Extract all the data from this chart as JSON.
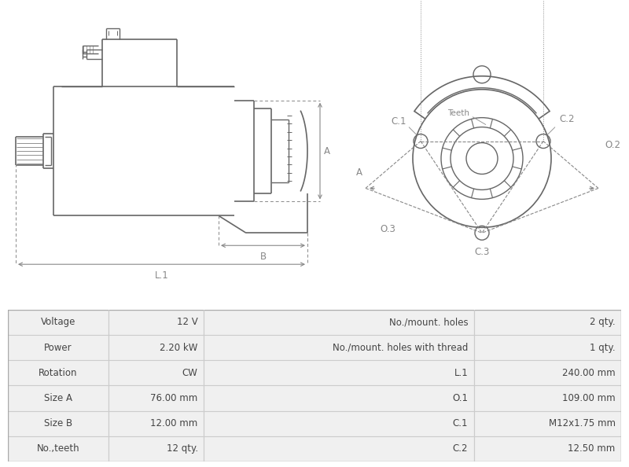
{
  "table_rows": [
    [
      "Voltage",
      "12 V",
      "No./mount. holes",
      "2 qty."
    ],
    [
      "Power",
      "2.20 kW",
      "No./mount. holes with thread",
      "1 qty."
    ],
    [
      "Rotation",
      "CW",
      "L.1",
      "240.00 mm"
    ],
    [
      "Size A",
      "76.00 mm",
      "O.1",
      "109.00 mm"
    ],
    [
      "Size B",
      "12.00 mm",
      "C.1",
      "M12x1.75 mm"
    ],
    [
      "No.,teeth",
      "12 qty.",
      "C.2",
      "12.50 mm"
    ]
  ],
  "drawing_color": "#666666",
  "dim_color": "#888888",
  "font_size_table": 8.5,
  "col_bounds": [
    0.0,
    0.165,
    0.32,
    0.76,
    1.0
  ]
}
